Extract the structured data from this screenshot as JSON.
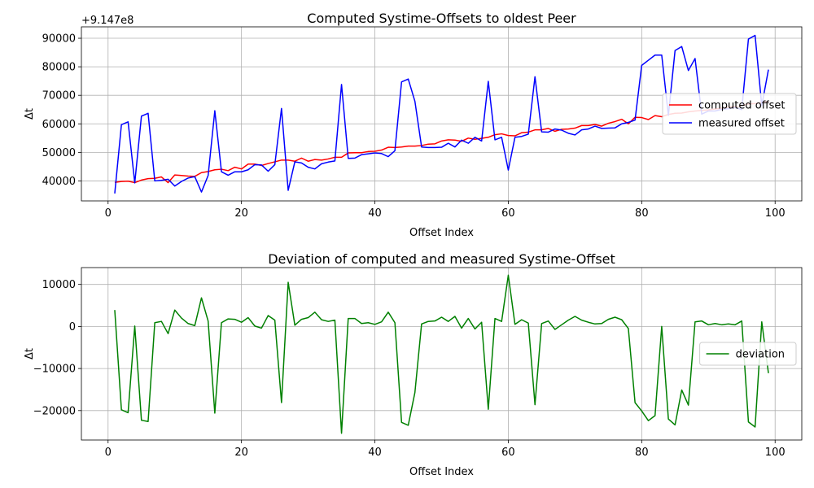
{
  "chart_data": [
    {
      "type": "line",
      "title": "Computed Systime-Offsets to oldest Peer",
      "xlabel": "Offset Index",
      "ylabel": "Δt",
      "y_offset_label": "+9.147e8",
      "xlim": [
        -4,
        104
      ],
      "ylim": [
        33000,
        94000
      ],
      "xticks": [
        0,
        20,
        40,
        60,
        80,
        100
      ],
      "yticks": [
        40000,
        50000,
        60000,
        70000,
        80000,
        90000
      ],
      "grid": true,
      "legend_position": "center-right",
      "x_start": 1,
      "series": [
        {
          "name": "computed offset",
          "color": "#ff0000",
          "values": [
            39500,
            39800,
            39900,
            39400,
            40300,
            40800,
            40900,
            41400,
            39400,
            42100,
            41900,
            41700,
            41600,
            42900,
            43300,
            43900,
            44100,
            43600,
            44800,
            44200,
            45900,
            45900,
            45400,
            46100,
            46700,
            47300,
            47300,
            46900,
            48000,
            46900,
            47500,
            47300,
            47700,
            48300,
            48300,
            49800,
            49900,
            49900,
            50300,
            50400,
            50800,
            51800,
            51700,
            51900,
            52200,
            52200,
            52400,
            52900,
            53000,
            54000,
            54400,
            54300,
            53900,
            55000,
            54600,
            54900,
            55300,
            56200,
            56500,
            55900,
            55800,
            56900,
            57100,
            57900,
            57900,
            58400,
            57400,
            58100,
            58200,
            58500,
            59400,
            59400,
            59800,
            59200,
            60200,
            60800,
            61600,
            60000,
            62300,
            62200,
            61500,
            62900,
            62500,
            63300,
            63700,
            63800,
            64200,
            64500,
            64700,
            64900,
            65200,
            65500,
            65900,
            66100,
            66300,
            67000,
            67100,
            67500,
            67900
          ]
        },
        {
          "name": "measured offset",
          "color": "#0000ff",
          "values": [
            35600,
            59700,
            60700,
            39300,
            62700,
            63700,
            40000,
            40200,
            40600,
            38200,
            39800,
            41000,
            41500,
            36100,
            41900,
            64600,
            43200,
            42000,
            43200,
            43200,
            43900,
            45700,
            45600,
            43400,
            45700,
            65400,
            36700,
            46700,
            46300,
            44800,
            44200,
            46000,
            46600,
            47000,
            73800,
            47900,
            48000,
            49200,
            49500,
            49800,
            49600,
            48500,
            50600,
            74700,
            75700,
            67900,
            51900,
            51700,
            51700,
            51800,
            53200,
            51900,
            54300,
            53200,
            55300,
            54000,
            74900,
            54400,
            55300,
            43800,
            55300,
            55600,
            56400,
            76500,
            57200,
            57100,
            58200,
            57800,
            56700,
            56100,
            57900,
            58200,
            59200,
            58400,
            58500,
            58600,
            60000,
            60500,
            61300,
            80500,
            82300,
            84100,
            84100,
            63000,
            85700,
            87100,
            78700,
            82900,
            63400,
            64500,
            64500,
            65100,
            65300,
            65700,
            65000,
            89700,
            91000,
            66400,
            79000
          ]
        }
      ]
    },
    {
      "type": "line",
      "title": "Deviation of computed and measured Systime-Offset",
      "xlabel": "Offset Index",
      "ylabel": "Δt",
      "xlim": [
        -4,
        104
      ],
      "ylim": [
        -27000,
        14000
      ],
      "xticks": [
        0,
        20,
        40,
        60,
        80,
        100
      ],
      "yticks": [
        -20000,
        -10000,
        0,
        10000
      ],
      "grid": true,
      "legend_position": "center-right",
      "x_start": 1,
      "series": [
        {
          "name": "deviation",
          "color": "#008000",
          "values": [
            3900,
            -19800,
            -20500,
            100,
            -22300,
            -22600,
            900,
            1200,
            -1700,
            3900,
            2000,
            700,
            200,
            6800,
            1300,
            -20600,
            900,
            1800,
            1700,
            1000,
            2100,
            100,
            -400,
            2600,
            1500,
            -18100,
            10500,
            300,
            1700,
            2100,
            3400,
            1600,
            1200,
            1500,
            -25400,
            1900,
            1900,
            700,
            900,
            500,
            1100,
            3400,
            900,
            -22800,
            -23500,
            -15700,
            600,
            1200,
            1300,
            2200,
            1200,
            2400,
            -400,
            1900,
            -600,
            1000,
            -19700,
            1900,
            1200,
            12200,
            500,
            1600,
            800,
            -18600,
            700,
            1300,
            -700,
            400,
            1500,
            2400,
            1500,
            1000,
            600,
            700,
            1700,
            2200,
            1600,
            -500,
            -18100,
            -20100,
            -22400,
            -21200,
            0,
            -22000,
            -23400,
            -15100,
            -18700,
            1100,
            1300,
            400,
            700,
            400,
            600,
            400,
            1300,
            -22700,
            -23900,
            1100,
            -11100
          ]
        }
      ]
    }
  ]
}
